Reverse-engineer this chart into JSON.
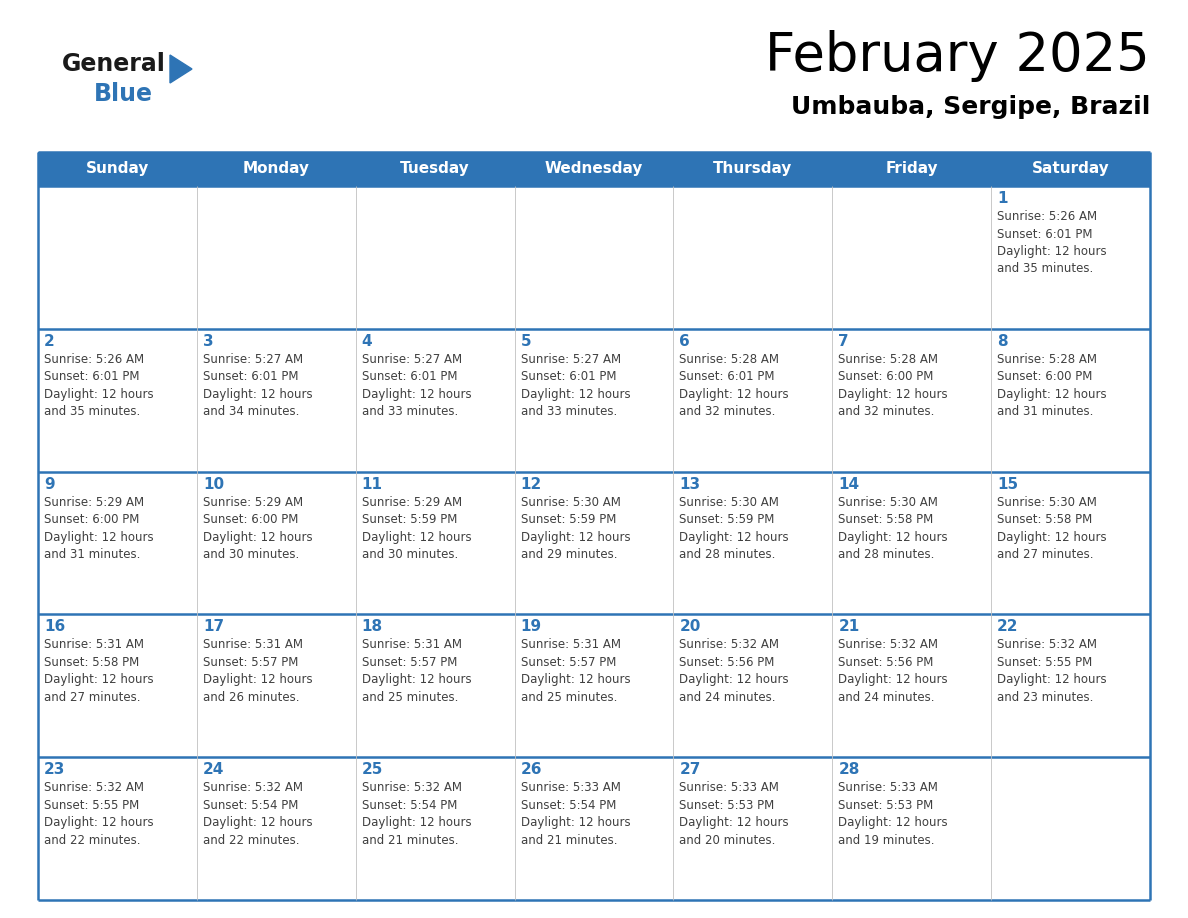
{
  "title": "February 2025",
  "subtitle": "Umbauba, Sergipe, Brazil",
  "days_of_week": [
    "Sunday",
    "Monday",
    "Tuesday",
    "Wednesday",
    "Thursday",
    "Friday",
    "Saturday"
  ],
  "header_bg_color": "#2E74B5",
  "header_text_color": "#FFFFFF",
  "cell_bg_color": "#FFFFFF",
  "border_color": "#2E74B5",
  "day_num_color": "#2E74B5",
  "text_color": "#404040",
  "title_color": "#000000",
  "subtitle_color": "#000000",
  "logo_general_color": "#1a1a1a",
  "logo_blue_color": "#2E74B5",
  "logo_triangle_color": "#2E74B5",
  "weeks": [
    [
      {
        "day": null,
        "sunrise": null,
        "sunset": null,
        "daylight": null
      },
      {
        "day": null,
        "sunrise": null,
        "sunset": null,
        "daylight": null
      },
      {
        "day": null,
        "sunrise": null,
        "sunset": null,
        "daylight": null
      },
      {
        "day": null,
        "sunrise": null,
        "sunset": null,
        "daylight": null
      },
      {
        "day": null,
        "sunrise": null,
        "sunset": null,
        "daylight": null
      },
      {
        "day": null,
        "sunrise": null,
        "sunset": null,
        "daylight": null
      },
      {
        "day": 1,
        "sunrise": "5:26 AM",
        "sunset": "6:01 PM",
        "daylight": "12 hours and 35 minutes."
      }
    ],
    [
      {
        "day": 2,
        "sunrise": "5:26 AM",
        "sunset": "6:01 PM",
        "daylight": "12 hours and 35 minutes."
      },
      {
        "day": 3,
        "sunrise": "5:27 AM",
        "sunset": "6:01 PM",
        "daylight": "12 hours and 34 minutes."
      },
      {
        "day": 4,
        "sunrise": "5:27 AM",
        "sunset": "6:01 PM",
        "daylight": "12 hours and 33 minutes."
      },
      {
        "day": 5,
        "sunrise": "5:27 AM",
        "sunset": "6:01 PM",
        "daylight": "12 hours and 33 minutes."
      },
      {
        "day": 6,
        "sunrise": "5:28 AM",
        "sunset": "6:01 PM",
        "daylight": "12 hours and 32 minutes."
      },
      {
        "day": 7,
        "sunrise": "5:28 AM",
        "sunset": "6:00 PM",
        "daylight": "12 hours and 32 minutes."
      },
      {
        "day": 8,
        "sunrise": "5:28 AM",
        "sunset": "6:00 PM",
        "daylight": "12 hours and 31 minutes."
      }
    ],
    [
      {
        "day": 9,
        "sunrise": "5:29 AM",
        "sunset": "6:00 PM",
        "daylight": "12 hours and 31 minutes."
      },
      {
        "day": 10,
        "sunrise": "5:29 AM",
        "sunset": "6:00 PM",
        "daylight": "12 hours and 30 minutes."
      },
      {
        "day": 11,
        "sunrise": "5:29 AM",
        "sunset": "5:59 PM",
        "daylight": "12 hours and 30 minutes."
      },
      {
        "day": 12,
        "sunrise": "5:30 AM",
        "sunset": "5:59 PM",
        "daylight": "12 hours and 29 minutes."
      },
      {
        "day": 13,
        "sunrise": "5:30 AM",
        "sunset": "5:59 PM",
        "daylight": "12 hours and 28 minutes."
      },
      {
        "day": 14,
        "sunrise": "5:30 AM",
        "sunset": "5:58 PM",
        "daylight": "12 hours and 28 minutes."
      },
      {
        "day": 15,
        "sunrise": "5:30 AM",
        "sunset": "5:58 PM",
        "daylight": "12 hours and 27 minutes."
      }
    ],
    [
      {
        "day": 16,
        "sunrise": "5:31 AM",
        "sunset": "5:58 PM",
        "daylight": "12 hours and 27 minutes."
      },
      {
        "day": 17,
        "sunrise": "5:31 AM",
        "sunset": "5:57 PM",
        "daylight": "12 hours and 26 minutes."
      },
      {
        "day": 18,
        "sunrise": "5:31 AM",
        "sunset": "5:57 PM",
        "daylight": "12 hours and 25 minutes."
      },
      {
        "day": 19,
        "sunrise": "5:31 AM",
        "sunset": "5:57 PM",
        "daylight": "12 hours and 25 minutes."
      },
      {
        "day": 20,
        "sunrise": "5:32 AM",
        "sunset": "5:56 PM",
        "daylight": "12 hours and 24 minutes."
      },
      {
        "day": 21,
        "sunrise": "5:32 AM",
        "sunset": "5:56 PM",
        "daylight": "12 hours and 24 minutes."
      },
      {
        "day": 22,
        "sunrise": "5:32 AM",
        "sunset": "5:55 PM",
        "daylight": "12 hours and 23 minutes."
      }
    ],
    [
      {
        "day": 23,
        "sunrise": "5:32 AM",
        "sunset": "5:55 PM",
        "daylight": "12 hours and 22 minutes."
      },
      {
        "day": 24,
        "sunrise": "5:32 AM",
        "sunset": "5:54 PM",
        "daylight": "12 hours and 22 minutes."
      },
      {
        "day": 25,
        "sunrise": "5:32 AM",
        "sunset": "5:54 PM",
        "daylight": "12 hours and 21 minutes."
      },
      {
        "day": 26,
        "sunrise": "5:33 AM",
        "sunset": "5:54 PM",
        "daylight": "12 hours and 21 minutes."
      },
      {
        "day": 27,
        "sunrise": "5:33 AM",
        "sunset": "5:53 PM",
        "daylight": "12 hours and 20 minutes."
      },
      {
        "day": 28,
        "sunrise": "5:33 AM",
        "sunset": "5:53 PM",
        "daylight": "12 hours and 19 minutes."
      },
      {
        "day": null,
        "sunrise": null,
        "sunset": null,
        "daylight": null
      }
    ]
  ]
}
